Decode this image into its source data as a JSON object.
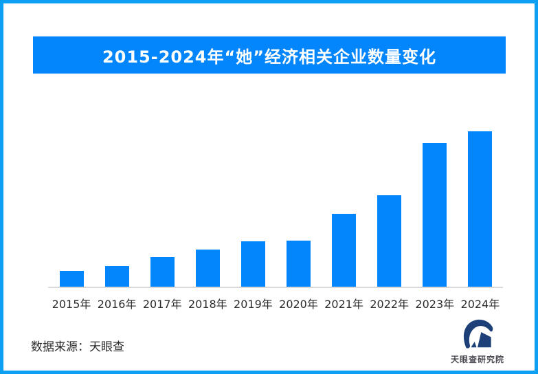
{
  "frame": {
    "border_color": "#0C9FF2",
    "background_color": "#FFFFFF"
  },
  "header": {
    "title": "2015-2024年“她”经济相关企业数量变化",
    "banner_color": "#0386FC",
    "title_text_color": "#FFFFFF"
  },
  "chart_data": {
    "type": "bar",
    "title": "2015-2024年“她”经济相关企业数量变化",
    "categories": [
      "2015年",
      "2016年",
      "2017年",
      "2018年",
      "2019年",
      "2020年",
      "2021年",
      "2022年",
      "2023年",
      "2024年"
    ],
    "values": [
      10,
      13.5,
      19,
      24,
      29.2,
      29.7,
      47,
      58.7,
      92.5,
      100
    ],
    "values_unit": "relative height, tallest bar = 100 (no numeric axis or data labels shown)",
    "xlabel": "",
    "ylabel": "",
    "ylim": [
      0,
      100
    ],
    "grid": false,
    "y_axis_visible": false,
    "value_labels_visible": false,
    "legend": "none",
    "bar_color": "#0386FC",
    "axis_line_color": "#D9D9D9",
    "tick_label_color": "#2B2B2B"
  },
  "footer": {
    "source_label": "数据来源：天眼查",
    "logo_text": "天眼查研究院",
    "logo_color": "#1C4077"
  }
}
